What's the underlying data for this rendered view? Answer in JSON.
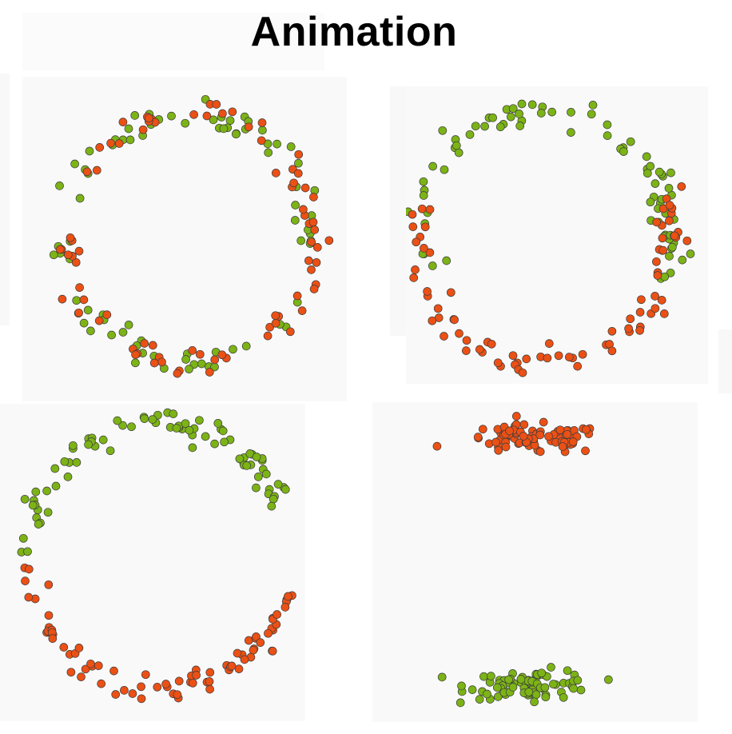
{
  "page": {
    "title": "Animation"
  },
  "colors": {
    "green": "#7cb316",
    "orange": "#eb5015",
    "outline": "#3c3c3c",
    "panel": "#f9f9f9"
  },
  "chart_data": [
    {
      "type": "scatter",
      "frame": 1,
      "description_shape": "ring",
      "series": [
        {
          "name": "",
          "color": "#7cb316",
          "count": 80
        },
        {
          "name": "",
          "color": "#eb5015",
          "count": 80
        }
      ],
      "ring": {
        "cx": 0,
        "cy": 0,
        "radius": 1.0,
        "jitter": 0.06,
        "green_mix": 0.5,
        "orange_mix": 0.5
      }
    },
    {
      "type": "scatter",
      "frame": 2,
      "series": [
        {
          "name": "",
          "color": "#7cb316",
          "count": 80
        },
        {
          "name": "",
          "color": "#eb5015",
          "count": 80
        }
      ],
      "ring": {
        "cx": 0,
        "cy": 0,
        "radius": 1.0,
        "jitter": 0.06,
        "green_arc_deg": [
          -200,
          20
        ],
        "orange_arc_deg": [
          -20,
          200
        ]
      }
    },
    {
      "type": "scatter",
      "frame": 3,
      "series": [
        {
          "name": "",
          "color": "#7cb316",
          "count": 80
        },
        {
          "name": "",
          "color": "#eb5015",
          "count": 80
        }
      ],
      "ring": {
        "cx": 0,
        "cy": 0,
        "radius": 1.0,
        "jitter": 0.05,
        "green_arc_deg": [
          -180,
          -20
        ],
        "orange_arc_deg": [
          15,
          175
        ]
      }
    },
    {
      "type": "scatter",
      "frame": 4,
      "series": [
        {
          "name": "",
          "color": "#eb5015",
          "count": 80,
          "cluster": {
            "x": 0.0,
            "y": 0.85,
            "sx": 0.25,
            "sy": 0.05
          }
        },
        {
          "name": "",
          "color": "#7cb316",
          "count": 80,
          "cluster": {
            "x": 0.0,
            "y": -0.85,
            "sx": 0.22,
            "sy": 0.05
          }
        }
      ]
    }
  ]
}
